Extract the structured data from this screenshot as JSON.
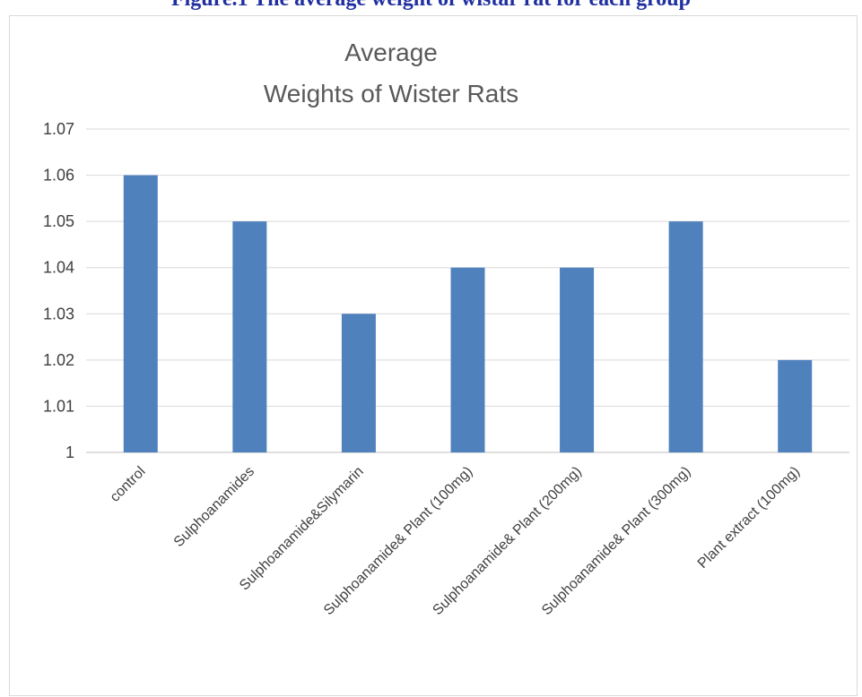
{
  "figure": {
    "caption": "Figure.1 The average weight of wistar rat for each group"
  },
  "chart_data": {
    "type": "bar",
    "title_lines": [
      "Average",
      "Weights of Wister Rats"
    ],
    "categories": [
      "control",
      "Sulphoanamides",
      "Sulphoanamide&Silymarin",
      "Sulphoanamide& Plant (100mg)",
      "Sulphoanamide& Plant (200mg)",
      "Sulphoanamide& Plant (300mg)",
      "Plant extract (100mg)"
    ],
    "values": [
      1.06,
      1.05,
      1.03,
      1.04,
      1.04,
      1.05,
      1.02
    ],
    "ylim": [
      1.0,
      1.07
    ],
    "yticks": [
      1,
      1.01,
      1.02,
      1.03,
      1.04,
      1.05,
      1.06,
      1.07
    ],
    "ytick_labels": [
      "1",
      "1.01",
      "1.02",
      "1.03",
      "1.04",
      "1.05",
      "1.06",
      "1.07"
    ],
    "grid": true,
    "legend": "none",
    "colors": {
      "bar": "#4f81bd",
      "grid": "#d9d9d9",
      "axis": "#bfbfbf"
    }
  }
}
